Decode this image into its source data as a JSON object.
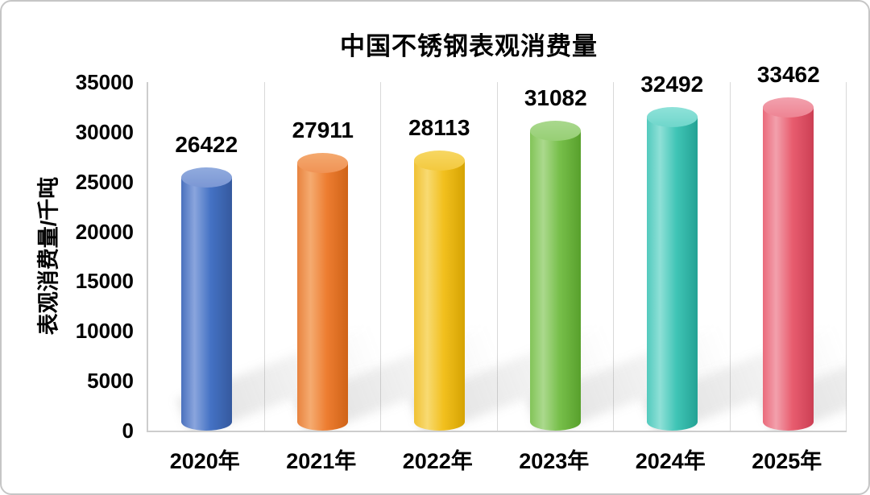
{
  "chart_data": {
    "type": "bar",
    "variant": "3d-cylinder",
    "title": "中国不锈钢表观消费量",
    "xlabel": "",
    "ylabel": "表观消费量/千吨",
    "categories": [
      "2020年",
      "2021年",
      "2022年",
      "2023年",
      "2024年",
      "2025年"
    ],
    "values": [
      26422,
      27911,
      28113,
      31082,
      32492,
      33462
    ],
    "data_labels": [
      "26422",
      "27911",
      "28113",
      "31082",
      "32492",
      "33462"
    ],
    "ylim": [
      0,
      35000
    ],
    "yticks": [
      0,
      5000,
      10000,
      15000,
      20000,
      25000,
      30000,
      35000
    ],
    "grid": "vertical-only",
    "legend": "none",
    "background": "#ffffff",
    "text_color": "#000000",
    "gridline_color": "#d9d9d9",
    "axis_color": "#cdcdcd",
    "bar_colors": [
      {
        "name": "blue",
        "base": "#4472C4",
        "light": "#8aa5dd",
        "edge": "#4a71bd",
        "dark": "#35599e",
        "cap1": "#91abde",
        "cap2": "#7b97d4"
      },
      {
        "name": "orange",
        "base": "#ED7D31",
        "light": "#f5ab70",
        "edge": "#e8833f",
        "dark": "#cf6317",
        "cap1": "#f4a96f",
        "cap2": "#f09355"
      },
      {
        "name": "gold",
        "base": "#F2C01E",
        "light": "#f8da72",
        "edge": "#f0c133",
        "dark": "#d5a302",
        "cap1": "#f7d763",
        "cap2": "#f3c93e"
      },
      {
        "name": "green",
        "base": "#77BF4A",
        "light": "#abd98d",
        "edge": "#82c458",
        "dark": "#58a02c",
        "cap1": "#a9d88d",
        "cap2": "#97cf75"
      },
      {
        "name": "teal",
        "base": "#40C5B6",
        "light": "#8fe0d7",
        "edge": "#52cabd",
        "dark": "#23a294",
        "cap1": "#8fe2d9",
        "cap2": "#6fd6cb"
      },
      {
        "name": "red",
        "base": "#E85D6F",
        "light": "#f2a0ac",
        "edge": "#ea6a7b",
        "dark": "#cc3f54",
        "cap1": "#f2a2ae",
        "cap2": "#ee8493"
      }
    ]
  }
}
